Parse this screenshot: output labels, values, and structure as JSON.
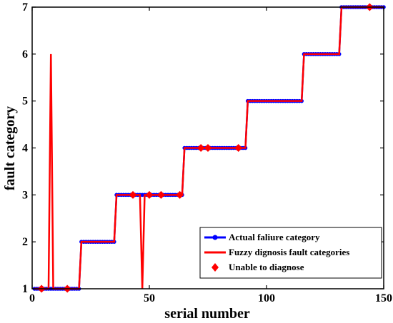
{
  "chart_data": {
    "type": "line",
    "xlabel": "serial number",
    "ylabel": "fault category",
    "xlim": [
      0,
      150
    ],
    "ylim": [
      1,
      7
    ],
    "xticks": [
      0,
      50,
      100,
      150
    ],
    "yticks": [
      1,
      2,
      3,
      4,
      5,
      6,
      7
    ],
    "grid": false,
    "legend_position": "lower-right",
    "series": [
      {
        "name": "Actual faliure category",
        "type": "line",
        "color": "#0000ff",
        "marker": "circle",
        "x_start": 1,
        "x_end": 150,
        "segments": [
          {
            "from": 1,
            "to": 20,
            "category": 1
          },
          {
            "from": 21,
            "to": 35,
            "category": 2
          },
          {
            "from": 36,
            "to": 64,
            "category": 3
          },
          {
            "from": 65,
            "to": 91,
            "category": 4
          },
          {
            "from": 92,
            "to": 115,
            "category": 5
          },
          {
            "from": 116,
            "to": 131,
            "category": 6
          },
          {
            "from": 132,
            "to": 150,
            "category": 7
          }
        ]
      },
      {
        "name": "Fuzzy dignosis fault categories",
        "type": "line",
        "color": "#ff0000",
        "deviations": [
          {
            "x": 8,
            "category": 6
          },
          {
            "x": 47,
            "category": 1
          }
        ]
      },
      {
        "name": "Unable to diagnose",
        "type": "scatter",
        "color": "#ff0000",
        "marker": "diamond",
        "points": [
          {
            "x": 4,
            "y": 1
          },
          {
            "x": 15,
            "y": 1
          },
          {
            "x": 43,
            "y": 3
          },
          {
            "x": 50,
            "y": 3
          },
          {
            "x": 55,
            "y": 3
          },
          {
            "x": 63,
            "y": 3
          },
          {
            "x": 72,
            "y": 4
          },
          {
            "x": 75,
            "y": 4
          },
          {
            "x": 88,
            "y": 4
          },
          {
            "x": 144,
            "y": 7
          }
        ]
      }
    ]
  }
}
